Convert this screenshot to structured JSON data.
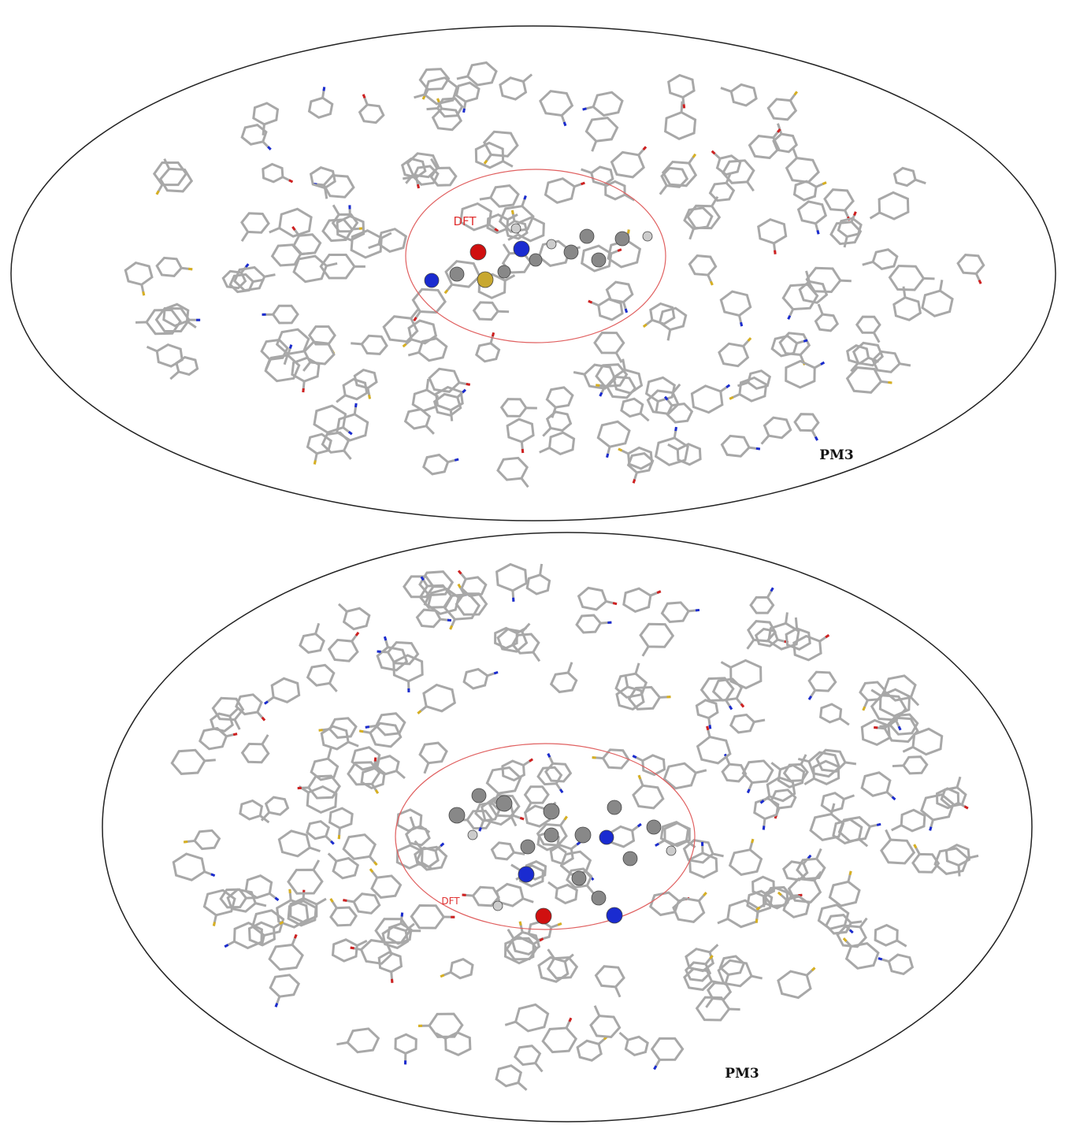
{
  "panels": [
    {
      "inner_label": "DFT",
      "outer_label": "PM3"
    },
    {
      "inner_label": "DFT",
      "outer_label": "PM3"
    }
  ]
}
